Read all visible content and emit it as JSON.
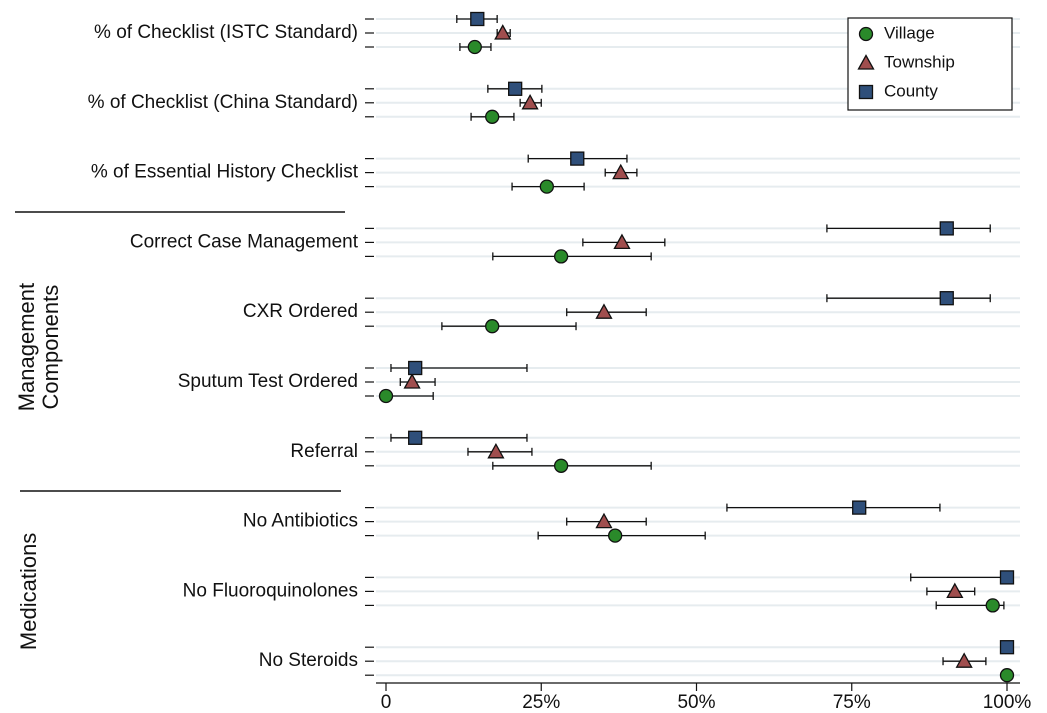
{
  "chart_data": {
    "type": "dot-errorbar",
    "categories": [
      "% of Checklist (ISTC Standard)",
      "% of Checklist (China Standard)",
      "% of Essential History Checklist",
      "Correct Case Management",
      "CXR Ordered",
      "Sputum Test Ordered",
      "Referral",
      "No Antibiotics",
      "No Fluoroquinolones",
      "No Steroids"
    ],
    "groups": [
      {
        "label": "Management Components",
        "members": [
          3,
          4,
          5,
          6
        ]
      },
      {
        "label": "Medications",
        "members": [
          7,
          8,
          9
        ]
      }
    ],
    "series": [
      {
        "name": "Village",
        "color": "#2a8a2a",
        "marker": "circle",
        "values": [
          14.3,
          17.1,
          25.9,
          28.2,
          17.1,
          0,
          28.2,
          36.9,
          97.7,
          100
        ],
        "lower": [
          11.9,
          13.7,
          20.3,
          17.2,
          9.0,
          0,
          17.2,
          24.5,
          88.6,
          null
        ],
        "upper": [
          16.9,
          20.6,
          31.9,
          42.7,
          30.6,
          7.6,
          42.7,
          51.4,
          99.5,
          null
        ]
      },
      {
        "name": "Township",
        "color": "#a04e4e",
        "marker": "triangle",
        "values": [
          18.8,
          23.2,
          37.8,
          38.0,
          35.1,
          4.2,
          17.7,
          35.1,
          91.6,
          93.1
        ],
        "lower": [
          17.9,
          21.6,
          35.3,
          31.7,
          29.1,
          2.3,
          13.2,
          29.1,
          87.1,
          89.7
        ],
        "upper": [
          20.0,
          25.0,
          40.4,
          44.9,
          41.9,
          7.9,
          23.5,
          41.9,
          94.8,
          96.6
        ]
      },
      {
        "name": "County",
        "color": "#2f4f7a",
        "marker": "square",
        "values": [
          14.7,
          20.8,
          30.8,
          90.3,
          90.3,
          4.7,
          4.7,
          76.2,
          100,
          100
        ],
        "lower": [
          11.4,
          16.4,
          22.9,
          71.0,
          71.0,
          0.8,
          0.8,
          54.9,
          84.5,
          null
        ],
        "upper": [
          17.9,
          25.1,
          38.8,
          97.3,
          97.3,
          22.7,
          22.7,
          89.2,
          100,
          null
        ]
      }
    ],
    "xlim": [
      0,
      100
    ],
    "xticks": [
      0,
      {
        "value": 25,
        "label": "25%"
      },
      {
        "value": 50,
        "label": "50%"
      },
      {
        "value": 75,
        "label": "75%"
      },
      {
        "value": 100,
        "label": "100%"
      }
    ],
    "legend": "top-right"
  }
}
